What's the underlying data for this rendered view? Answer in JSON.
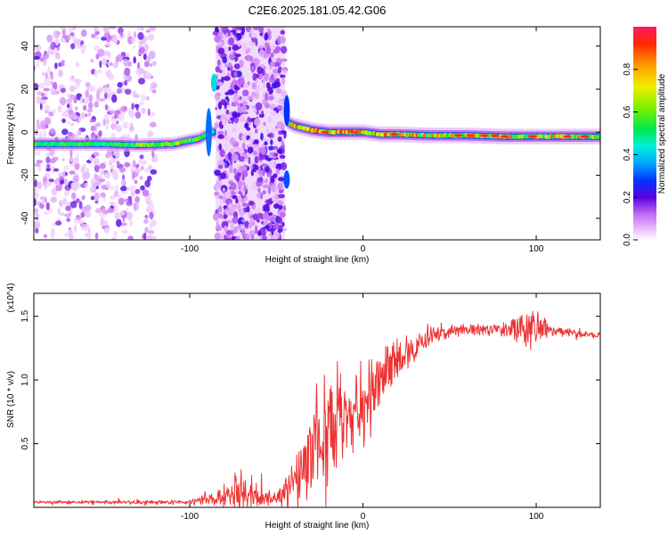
{
  "figure": {
    "title": "C2E6.2025.181.05.42.G06"
  },
  "chart_data": [
    {
      "type": "heatmap",
      "xlabel": "Height of straight line (km)",
      "ylabel": "Frequency (Hz)",
      "xlim": [
        -190,
        137
      ],
      "ylim": [
        -50,
        49
      ],
      "x_ticks": [
        -100,
        0,
        100
      ],
      "y_ticks": [
        -40,
        -20,
        0,
        20,
        40
      ],
      "colorbar": {
        "label": "Normalized spectral amplitude",
        "range": [
          0,
          1
        ],
        "ticks": [
          0.0,
          0.2,
          0.4,
          0.6,
          0.8
        ]
      },
      "ridge": {
        "x": [
          -190,
          -150,
          -130,
          -110,
          -95,
          -88,
          -70,
          -45,
          -40,
          -30,
          -20,
          -10,
          0,
          10,
          20,
          40,
          60,
          80,
          100,
          120,
          137
        ],
        "frequency": [
          -5.5,
          -5.5,
          -6,
          -5.5,
          -3,
          0,
          0,
          5,
          3,
          1,
          0,
          0,
          0,
          -1,
          -1,
          -1.5,
          -1.5,
          -2,
          -2,
          -2,
          -2
        ]
      },
      "scatter_regions": [
        {
          "x_range": [
            -190,
            -120
          ],
          "level": "sparse"
        },
        {
          "x_range": [
            -85,
            -45
          ],
          "level": "dense"
        }
      ]
    },
    {
      "type": "line",
      "xlabel": "Height of straight line (km)",
      "ylabel": "SNR (10 * v/v)",
      "y_multiplier": "(x10^4)",
      "xlim": [
        -190,
        137
      ],
      "ylim": [
        0,
        1.68
      ],
      "x_ticks": [
        -100,
        0,
        100
      ],
      "y_ticks": [
        0.5,
        1.0,
        1.5
      ],
      "color": "#ee3333",
      "trend": {
        "x": [
          -190,
          -100,
          -90,
          -80,
          -70,
          -60,
          -50,
          -40,
          -30,
          -20,
          -10,
          0,
          10,
          20,
          30,
          40,
          60,
          80,
          95,
          110,
          137
        ],
        "y": [
          0.04,
          0.04,
          0.06,
          0.09,
          0.12,
          0.1,
          0.07,
          0.18,
          0.45,
          0.6,
          0.7,
          0.8,
          1.05,
          1.15,
          1.25,
          1.35,
          1.4,
          1.4,
          1.4,
          1.38,
          1.35
        ]
      },
      "noise_amplitude": {
        "x": [
          -190,
          -100,
          -80,
          -70,
          -60,
          -50,
          -40,
          -30,
          -20,
          0,
          20,
          40,
          60,
          80,
          90,
          100,
          110,
          137
        ],
        "y": [
          0.015,
          0.02,
          0.1,
          0.25,
          0.12,
          0.05,
          0.3,
          0.45,
          0.45,
          0.4,
          0.2,
          0.08,
          0.05,
          0.06,
          0.15,
          0.18,
          0.04,
          0.03
        ]
      }
    }
  ]
}
